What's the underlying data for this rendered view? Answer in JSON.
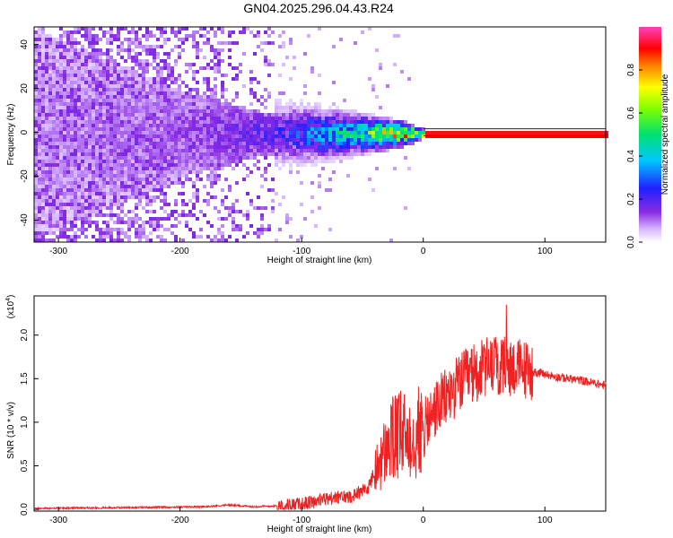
{
  "title": "GN04.2025.296.04.43.R24",
  "chart_data": [
    {
      "type": "heatmap",
      "xlabel": "Height of straight line (km)",
      "ylabel": "Frequency (Hz)",
      "xlim": [
        -320,
        150
      ],
      "ylim": [
        -50,
        48
      ],
      "xticks": [
        -300,
        -200,
        -100,
        0,
        100
      ],
      "yticks": [
        40,
        20,
        0,
        -20,
        -40
      ],
      "colorbar": {
        "label": "Normalized spectral amplitude",
        "range": [
          0,
          1
        ],
        "ticks": [
          "0.0",
          "0.2",
          "0.4",
          "0.6",
          "0.8"
        ]
      },
      "description_points": [
        {
          "x": -320,
          "spread_hz": 48,
          "amplitude": 0.08
        },
        {
          "x": -200,
          "spread_hz": 20,
          "amplitude": 0.12
        },
        {
          "x": -120,
          "spread_hz": 8,
          "amplitude": 0.2
        },
        {
          "x": -60,
          "spread_hz": 5,
          "amplitude": 0.45
        },
        {
          "x": -20,
          "spread_hz": 3,
          "amplitude": 0.75
        },
        {
          "x": 0,
          "spread_hz": 1,
          "amplitude": 0.95
        },
        {
          "x": 150,
          "spread_hz": 1,
          "amplitude": 0.95
        }
      ]
    },
    {
      "type": "line",
      "xlabel": "Height of straight line (km)",
      "ylabel": "SNR (10 * v/v)",
      "yscale_label": "(x10",
      "yscale_exp": "4",
      "yscale_close": ")",
      "xlim": [
        -320,
        150
      ],
      "ylim": [
        -0.02,
        2.45
      ],
      "xticks": [
        -300,
        -200,
        -100,
        0,
        100
      ],
      "yticks": [
        "0.0",
        "0.5",
        "1.0",
        "1.5",
        "2.0"
      ],
      "ytick_values": [
        0,
        0.5,
        1.0,
        1.5,
        2.0
      ],
      "color": "#ee2222",
      "series": [
        {
          "x": [
            -320,
            -250,
            -180,
            -160,
            -140,
            -120,
            -100,
            -80,
            -60,
            -45,
            -35,
            -25,
            -15,
            -5,
            0,
            10,
            20,
            30,
            40,
            50,
            60,
            70,
            80,
            90,
            100,
            110,
            120,
            130,
            140,
            150
          ],
          "y": [
            0.01,
            0.02,
            0.03,
            0.05,
            0.03,
            0.04,
            0.06,
            0.12,
            0.15,
            0.25,
            0.6,
            0.85,
            0.9,
            0.95,
            0.9,
            1.15,
            1.3,
            1.45,
            1.55,
            1.62,
            1.65,
            1.65,
            1.62,
            1.58,
            1.55,
            1.52,
            1.5,
            1.48,
            1.45,
            1.42
          ]
        }
      ]
    }
  ],
  "colors": {
    "axis": "#000000",
    "line": "#ee2222"
  }
}
